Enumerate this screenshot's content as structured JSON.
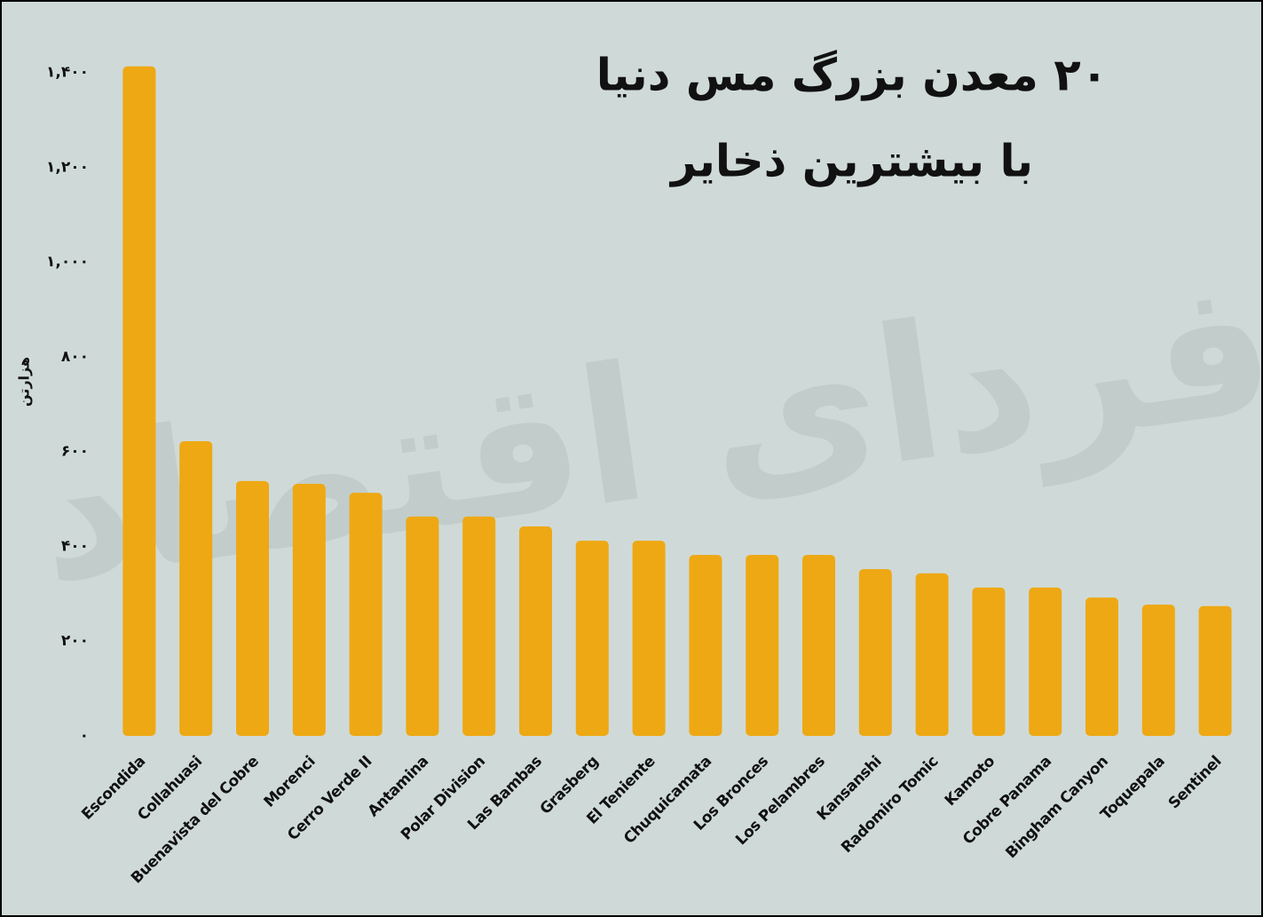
{
  "chart_data": {
    "type": "bar",
    "title_lines": [
      "۲۰ معدن بزرگ مس دنیا",
      "با بیشترین ذخایر"
    ],
    "y_label": "هزارتن",
    "watermark": "فردای اقتصاد",
    "categories": [
      "Escondida",
      "Collahuasi",
      "Buenavista del Cobre",
      "Morenci",
      "Cerro Verde II",
      "Antamina",
      "Polar Division",
      "Las Bambas",
      "Grasberg",
      "El Teniente",
      "Chuquicamata",
      "Los Bronces",
      "Los Pelambres",
      "Kansanshi",
      "Radomiro Tomic",
      "Kamoto",
      "Cobre Panama",
      "Bingham Canyon",
      "Toquepala",
      "Sentinel"
    ],
    "values": [
      1413,
      622,
      538,
      532,
      513,
      463,
      463,
      442,
      412,
      412,
      382,
      382,
      382,
      352,
      343,
      313,
      313,
      292,
      277,
      274
    ],
    "color": "#eea813",
    "ylim": [
      0,
      1420
    ],
    "yticks": [
      {
        "value": 0,
        "label": "۰"
      },
      {
        "value": 200,
        "label": "۲۰۰"
      },
      {
        "value": 400,
        "label": "۴۰۰"
      },
      {
        "value": 600,
        "label": "۶۰۰"
      },
      {
        "value": 800,
        "label": "۸۰۰"
      },
      {
        "value": 1000,
        "label": "۱,۰۰۰"
      },
      {
        "value": 1200,
        "label": "۱,۲۰۰"
      },
      {
        "value": 1400,
        "label": "۱,۴۰۰"
      }
    ],
    "grid": false
  }
}
